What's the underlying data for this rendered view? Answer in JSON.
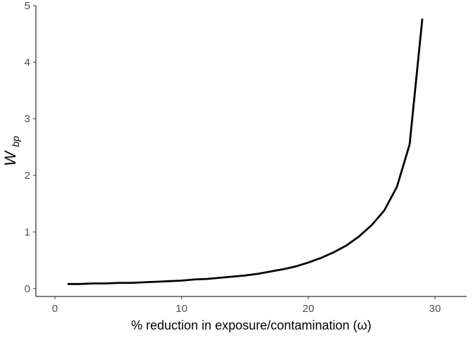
{
  "chart_data": {
    "type": "line",
    "title": "",
    "xlabel": "% reduction in exposure/contamination (ω)",
    "ylabel": {
      "main": "W",
      "subscript": "bp"
    },
    "xlim": [
      -1.5,
      32.5
    ],
    "ylim": [
      -0.14,
      5.0
    ],
    "xticks": [
      0,
      10,
      20,
      30
    ],
    "yticks": [
      0,
      1,
      2,
      3,
      4,
      5
    ],
    "grid": false,
    "legend": "none",
    "line_color": "#000000",
    "series": [
      {
        "x": [
          1,
          2,
          3,
          4,
          5,
          6,
          7,
          8,
          9,
          10,
          11,
          12,
          13,
          14,
          15,
          16,
          17,
          18,
          19,
          20,
          21,
          22,
          23,
          24,
          25,
          26,
          27,
          28,
          29
        ],
        "y": [
          0.08,
          0.08,
          0.09,
          0.09,
          0.1,
          0.1,
          0.11,
          0.12,
          0.13,
          0.14,
          0.16,
          0.17,
          0.19,
          0.21,
          0.23,
          0.26,
          0.3,
          0.34,
          0.39,
          0.46,
          0.54,
          0.64,
          0.76,
          0.92,
          1.12,
          1.38,
          1.8,
          2.55,
          4.77
        ]
      }
    ]
  }
}
